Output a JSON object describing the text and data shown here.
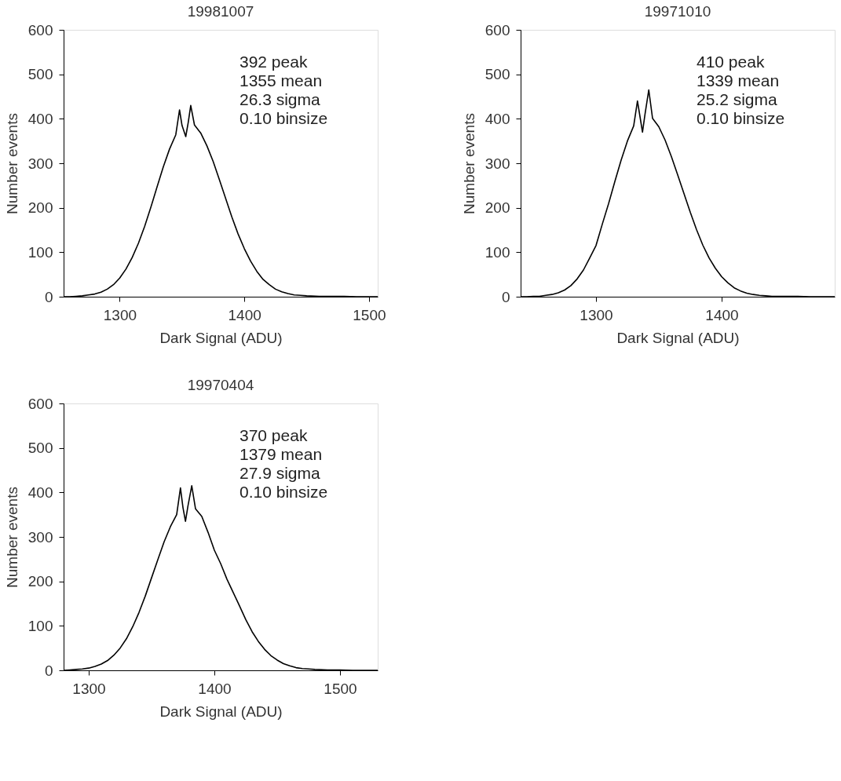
{
  "chart_data": [
    {
      "type": "line",
      "title": "19981007",
      "xlabel": "Dark Signal (ADU)",
      "ylabel": "Number events",
      "xlim": [
        1255,
        1507
      ],
      "xticks": [
        1300,
        1400,
        1500
      ],
      "ylim": [
        0,
        600
      ],
      "yticks": [
        0,
        100,
        200,
        300,
        400,
        500,
        600
      ],
      "annotations": [
        "392 peak",
        "1355 mean",
        "26.3 sigma",
        "0.10 binsize"
      ],
      "x": [
        1255,
        1260,
        1265,
        1270,
        1275,
        1280,
        1285,
        1290,
        1295,
        1300,
        1305,
        1310,
        1315,
        1320,
        1325,
        1330,
        1335,
        1340,
        1345,
        1348,
        1350,
        1353,
        1355,
        1357,
        1360,
        1365,
        1370,
        1375,
        1380,
        1385,
        1390,
        1395,
        1400,
        1405,
        1410,
        1415,
        1420,
        1425,
        1430,
        1435,
        1440,
        1445,
        1450,
        1460,
        1470,
        1480,
        1490,
        1500,
        1507
      ],
      "series": [
        {
          "color": "#000000",
          "values": [
            0,
            0,
            1,
            2,
            4,
            6,
            10,
            17,
            27,
            42,
            62,
            88,
            120,
            158,
            201,
            247,
            292,
            332,
            364,
            420,
            385,
            360,
            392,
            430,
            386,
            368,
            339,
            304,
            263,
            221,
            179,
            141,
            108,
            80,
            57,
            39,
            27,
            17,
            11,
            7,
            4,
            3,
            2,
            1,
            1,
            1,
            0,
            0,
            0
          ]
        }
      ]
    },
    {
      "type": "line",
      "title": "19971010",
      "xlabel": "Dark Signal (ADU)",
      "ylabel": "Number events",
      "xlim": [
        1240,
        1490
      ],
      "xticks": [
        1300,
        1400
      ],
      "ylim": [
        0,
        600
      ],
      "yticks": [
        0,
        100,
        200,
        300,
        400,
        500,
        600
      ],
      "annotations": [
        "410 peak",
        "1339 mean",
        "25.2 sigma",
        "0.10 binsize"
      ],
      "x": [
        1240,
        1245,
        1250,
        1255,
        1260,
        1265,
        1270,
        1275,
        1280,
        1285,
        1290,
        1295,
        1300,
        1305,
        1310,
        1315,
        1320,
        1325,
        1330,
        1333,
        1335,
        1337,
        1339,
        1342,
        1345,
        1350,
        1355,
        1360,
        1365,
        1370,
        1375,
        1380,
        1385,
        1390,
        1395,
        1400,
        1405,
        1410,
        1415,
        1420,
        1425,
        1430,
        1435,
        1440,
        1450,
        1460,
        1470,
        1480,
        1490
      ],
      "series": [
        {
          "color": "#000000",
          "values": [
            0,
            0,
            1,
            1,
            3,
            5,
            9,
            15,
            25,
            40,
            60,
            87,
            115,
            163,
            209,
            259,
            307,
            350,
            384,
            440,
            405,
            370,
            410,
            465,
            401,
            382,
            352,
            315,
            274,
            232,
            190,
            151,
            116,
            87,
            64,
            45,
            31,
            20,
            13,
            8,
            5,
            3,
            2,
            1,
            1,
            1,
            0,
            0,
            0
          ]
        }
      ]
    },
    {
      "type": "line",
      "title": "19970404",
      "xlabel": "Dark Signal (ADU)",
      "ylabel": "Number events",
      "xlim": [
        1280,
        1530
      ],
      "xticks": [
        1300,
        1400,
        1500
      ],
      "ylim": [
        0,
        600
      ],
      "yticks": [
        0,
        100,
        200,
        300,
        400,
        500,
        600
      ],
      "annotations": [
        "370 peak",
        "1379 mean",
        "27.9 sigma",
        "0.10 binsize"
      ],
      "x": [
        1280,
        1285,
        1290,
        1295,
        1300,
        1305,
        1310,
        1315,
        1320,
        1325,
        1330,
        1335,
        1340,
        1345,
        1350,
        1355,
        1360,
        1365,
        1370,
        1373,
        1375,
        1377,
        1379,
        1382,
        1385,
        1390,
        1395,
        1400,
        1405,
        1410,
        1415,
        1420,
        1425,
        1430,
        1435,
        1440,
        1445,
        1450,
        1455,
        1460,
        1465,
        1470,
        1475,
        1480,
        1490,
        1500,
        1510,
        1520,
        1530
      ],
      "series": [
        {
          "color": "#000000",
          "values": [
            0,
            1,
            2,
            3,
            5,
            9,
            14,
            22,
            34,
            50,
            71,
            98,
            130,
            167,
            208,
            249,
            289,
            323,
            350,
            410,
            366,
            335,
            370,
            415,
            363,
            346,
            310,
            270,
            240,
            205,
            175,
            145,
            114,
            87,
            65,
            47,
            33,
            23,
            15,
            10,
            6,
            4,
            3,
            2,
            1,
            1,
            0,
            0,
            0
          ]
        }
      ]
    }
  ]
}
